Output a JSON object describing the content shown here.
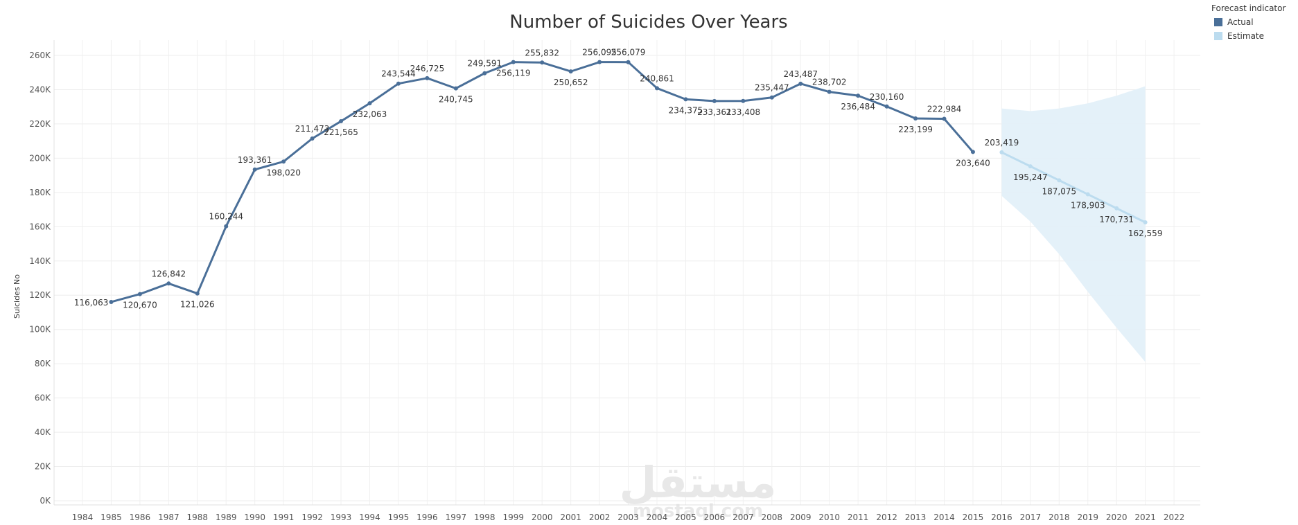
{
  "legend": {
    "title": "Forecast indicator",
    "items": [
      {
        "label": "Actual",
        "color": "#4a6f98"
      },
      {
        "label": "Estimate",
        "color": "#bcdcef"
      }
    ]
  },
  "watermark": {
    "text": "mostaql.com",
    "color": "#e5e5e5"
  },
  "chart_data": {
    "type": "line",
    "title": "Number of Suicides Over Years",
    "xlabel": "",
    "ylabel": "Suicides No",
    "ylim": [
      0,
      270000
    ],
    "xlim": [
      1984,
      2022
    ],
    "grid": true,
    "legend_position": "top-right",
    "categories": [
      "1984",
      "1985",
      "1986",
      "1987",
      "1988",
      "1989",
      "1990",
      "1991",
      "1992",
      "1993",
      "1994",
      "1995",
      "1996",
      "1997",
      "1998",
      "1999",
      "2000",
      "2001",
      "2002",
      "2003",
      "2004",
      "2005",
      "2006",
      "2007",
      "2008",
      "2009",
      "2010",
      "2011",
      "2012",
      "2013",
      "2014",
      "2015",
      "2016",
      "2017",
      "2018",
      "2019",
      "2020",
      "2021",
      "2022"
    ],
    "y_ticks": [
      0,
      20000,
      40000,
      60000,
      80000,
      100000,
      120000,
      140000,
      160000,
      180000,
      200000,
      220000,
      240000,
      260000
    ],
    "y_tick_labels": [
      "0K",
      "20K",
      "40K",
      "60K",
      "80K",
      "100K",
      "120K",
      "140K",
      "160K",
      "180K",
      "200K",
      "220K",
      "240K",
      "260K"
    ],
    "series": [
      {
        "name": "Actual",
        "color": "#4a6f98",
        "x": [
          1985,
          1986,
          1987,
          1988,
          1989,
          1990,
          1991,
          1992,
          1993,
          1994,
          1995,
          1996,
          1997,
          1998,
          1999,
          2000,
          2001,
          2002,
          2003,
          2004,
          2005,
          2006,
          2007,
          2008,
          2009,
          2010,
          2011,
          2012,
          2013,
          2014,
          2015
        ],
        "values": [
          116063,
          120670,
          126842,
          121026,
          160244,
          193361,
          198020,
          211473,
          221565,
          232063,
          243544,
          246725,
          240745,
          249591,
          256119,
          255832,
          250652,
          256095,
          256079,
          240861,
          234375,
          233361,
          233408,
          235447,
          243487,
          238702,
          236484,
          230160,
          223199,
          222984,
          203640
        ],
        "labels": [
          "116,063",
          "120,670",
          "126,842",
          "121,026",
          "160,244",
          "193,361",
          "198,020",
          "211,473",
          "221,565",
          "232,063",
          "243,544",
          "246,725",
          "240,745",
          "249,591",
          "256,119",
          "255,832",
          "250,652",
          "256,095",
          "256,079",
          "240,861",
          "234,375",
          "233,361",
          "",
          "235,447",
          "243,487",
          "238,702",
          "236,484",
          "230,160",
          "223,199",
          "222,984",
          "203,640"
        ],
        "label_pos": [
          "left",
          "below",
          "above",
          "below",
          "above",
          "above",
          "below",
          "above",
          "below",
          "below",
          "above",
          "above",
          "below",
          "above",
          "below",
          "above",
          "below",
          "above",
          "above",
          "above",
          "below",
          "below",
          "",
          "above",
          "above",
          "above",
          "below",
          "above",
          "below",
          "above",
          "below"
        ]
      },
      {
        "name": "Estimate",
        "color": "#bcdcef",
        "x": [
          2016,
          2017,
          2018,
          2019,
          2020,
          2021
        ],
        "values": [
          203419,
          195247,
          187075,
          178903,
          170731,
          162559
        ],
        "labels": [
          "203,419",
          "195,247",
          "187,075",
          "178,903",
          "170,731",
          "162,559"
        ],
        "label_pos": [
          "above",
          "below",
          "below",
          "below",
          "below",
          "below"
        ],
        "band_x": [
          2016,
          2017,
          2018,
          2019,
          2020,
          2021
        ],
        "band_upper": [
          229000,
          227500,
          229000,
          232000,
          236500,
          242000
        ],
        "band_lower": [
          178000,
          163000,
          144000,
          122000,
          101000,
          81000
        ]
      }
    ],
    "extra_labels": [
      {
        "x": 2007,
        "y": 233408,
        "text": "233,408",
        "pos": "below"
      }
    ]
  }
}
